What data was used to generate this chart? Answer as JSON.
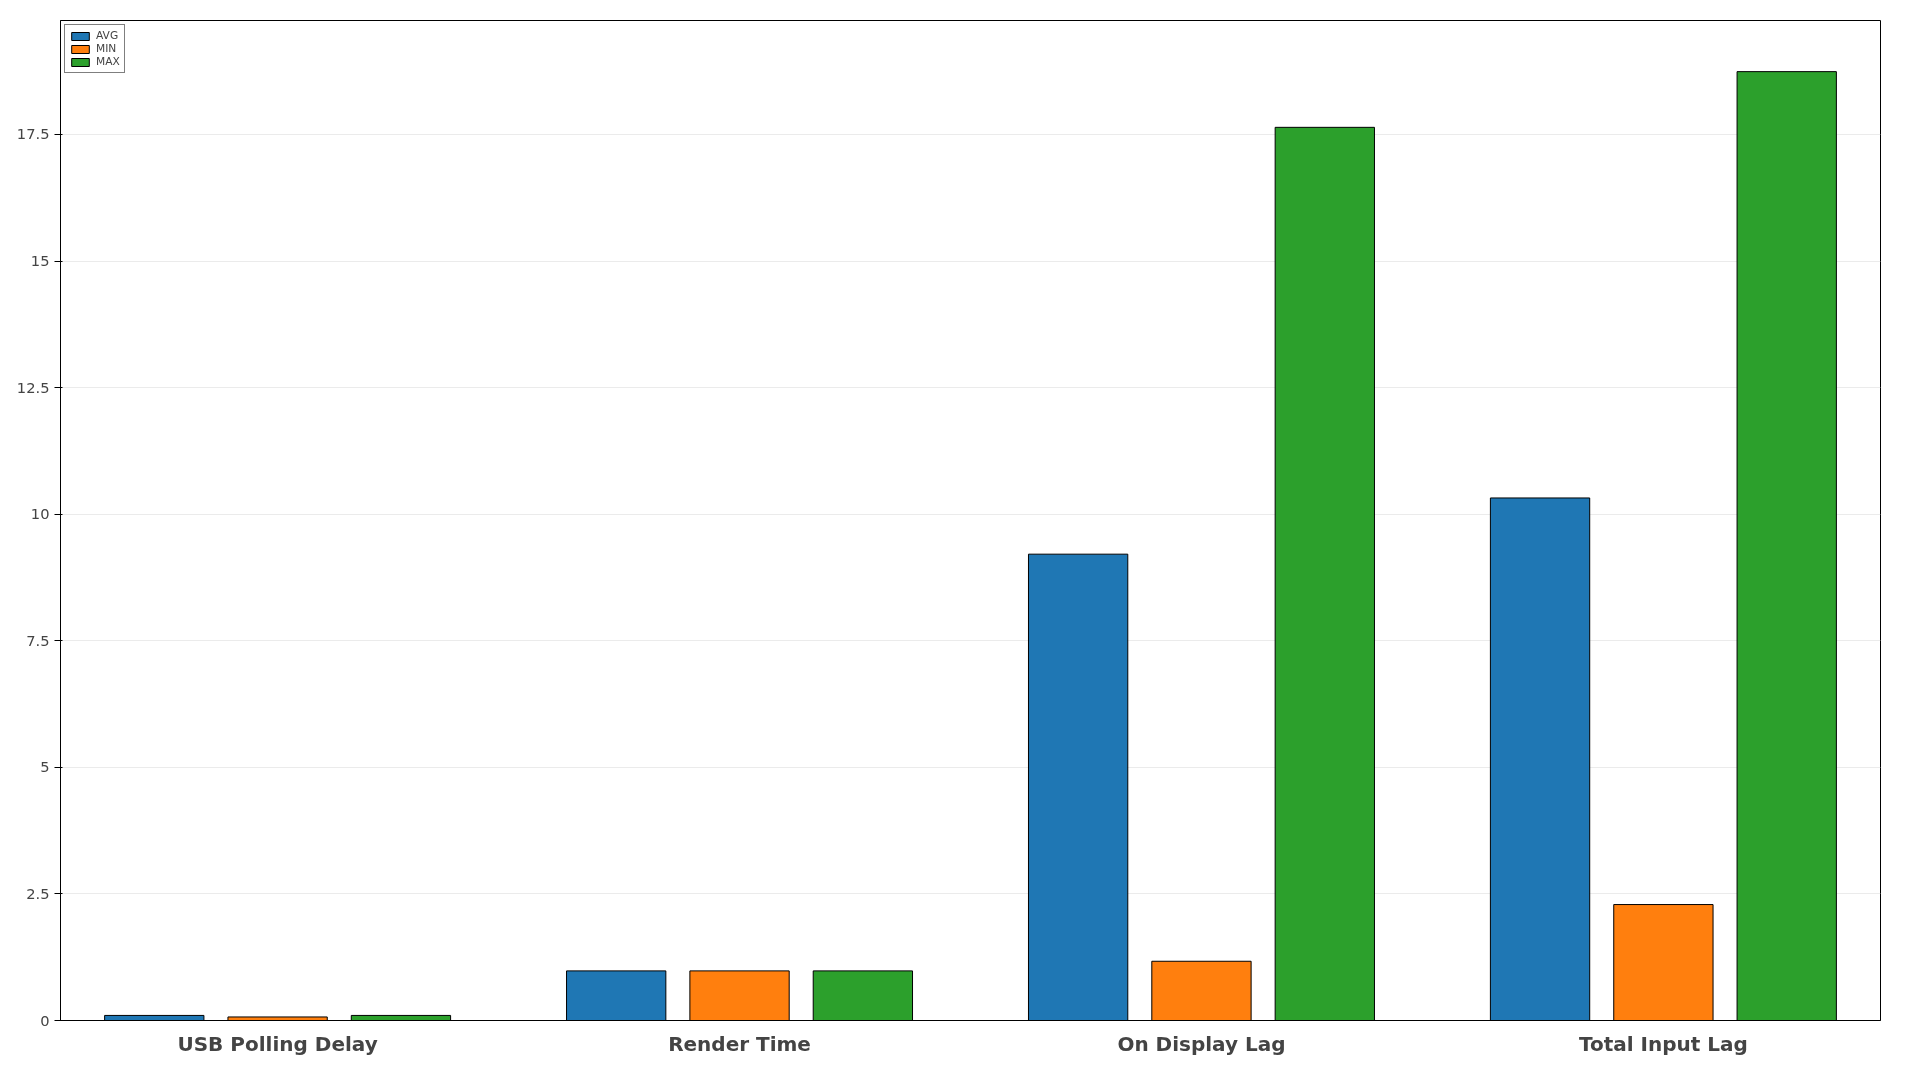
{
  "chart_data": {
    "type": "bar",
    "categories": [
      "USB Polling Delay",
      "Render Time",
      "On Display Lag",
      "Total Input Lag"
    ],
    "series": [
      {
        "name": "AVG",
        "color": "#1f77b4",
        "values": [
          0.1,
          0.98,
          9.21,
          10.32
        ]
      },
      {
        "name": "MIN",
        "color": "#ff7f0e",
        "values": [
          0.07,
          0.98,
          1.17,
          2.29
        ]
      },
      {
        "name": "MAX",
        "color": "#2ca02c",
        "values": [
          0.1,
          0.98,
          17.64,
          18.74
        ]
      }
    ],
    "ylim": [
      0,
      19.75
    ],
    "yticks": [
      0,
      2.5,
      5,
      7.5,
      10,
      12.5,
      15,
      17.5
    ],
    "grid": "y",
    "legend": "top left"
  }
}
